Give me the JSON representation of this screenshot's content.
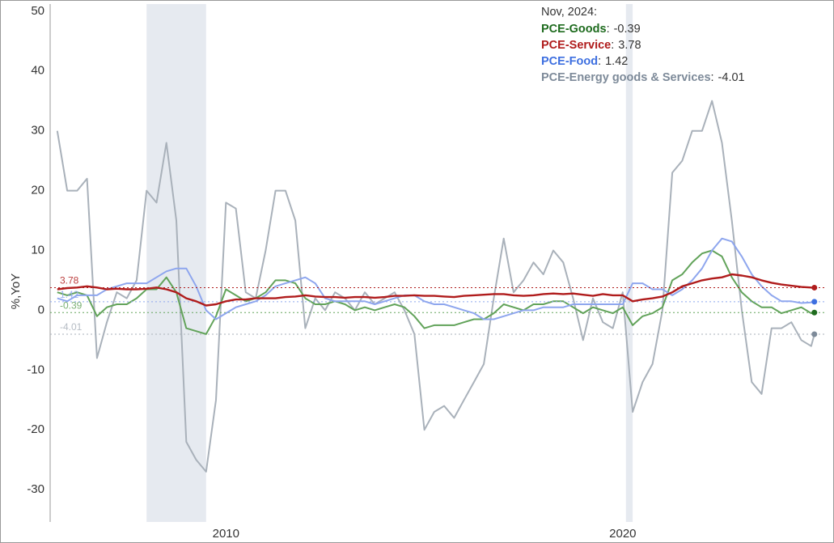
{
  "chart_data": {
    "type": "line",
    "ylabel": "%,YoY",
    "legend_title": "Nov, 2024:",
    "legend": "top-right",
    "xlim": [
      2005.57,
      2025.1
    ],
    "xticks": [
      2010,
      2020
    ],
    "ylim": [
      -35.4,
      51.2
    ],
    "yticks": [
      -30,
      -20,
      -10,
      0,
      10,
      20,
      30,
      40,
      50
    ],
    "shading": [
      [
        2008.0,
        2009.5
      ],
      [
        2020.08,
        2020.25
      ]
    ],
    "shading_color": "#e6eaf0",
    "x": [
      2005.75,
      2006.0,
      2006.25,
      2006.5,
      2006.75,
      2007.0,
      2007.25,
      2007.5,
      2007.75,
      2008.0,
      2008.25,
      2008.5,
      2008.75,
      2009.0,
      2009.25,
      2009.5,
      2009.75,
      2010.0,
      2010.25,
      2010.5,
      2010.75,
      2011.0,
      2011.25,
      2011.5,
      2011.75,
      2012.0,
      2012.25,
      2012.5,
      2012.75,
      2013.0,
      2013.25,
      2013.5,
      2013.75,
      2014.0,
      2014.25,
      2014.5,
      2014.75,
      2015.0,
      2015.25,
      2015.5,
      2015.75,
      2016.0,
      2016.25,
      2016.5,
      2016.75,
      2017.0,
      2017.25,
      2017.5,
      2017.75,
      2018.0,
      2018.25,
      2018.5,
      2018.75,
      2019.0,
      2019.25,
      2019.5,
      2019.75,
      2020.0,
      2020.25,
      2020.5,
      2020.75,
      2021.0,
      2021.25,
      2021.5,
      2021.75,
      2022.0,
      2022.25,
      2022.5,
      2022.75,
      2023.0,
      2023.25,
      2023.5,
      2023.75,
      2024.0,
      2024.25,
      2024.5,
      2024.75,
      2024.83
    ],
    "series": [
      {
        "name": "PCE-Energy goods & Services",
        "color": "#7d8a99",
        "line_color": "#a9b1ba",
        "values": [
          30,
          20,
          20,
          22,
          -8,
          -2,
          3,
          2,
          5,
          20,
          18,
          28,
          15,
          -22,
          -25,
          -27,
          -15,
          18,
          17,
          3,
          2,
          10,
          20,
          20,
          15,
          -3,
          2,
          0,
          3,
          2,
          0,
          3,
          1,
          2,
          3,
          0,
          -4,
          -20,
          -17,
          -16,
          -18,
          -15,
          -12,
          -9,
          2,
          12,
          3,
          5,
          8,
          6,
          10,
          8,
          2,
          -5,
          2,
          -2,
          -3,
          3,
          -17,
          -12,
          -9,
          0,
          23,
          25,
          30,
          30,
          35,
          28,
          15,
          0,
          -12,
          -14,
          -3,
          -3,
          -2,
          -5,
          -6,
          -4.01
        ]
      },
      {
        "name": "PCE-Goods",
        "color": "#1e6b1e",
        "line_color": "#62a35a",
        "values": [
          3,
          2.5,
          3,
          2.5,
          -1,
          0.5,
          1,
          1,
          2,
          3.5,
          3.5,
          5.5,
          3,
          -3,
          -3.5,
          -4,
          -1,
          3.5,
          2.5,
          1.5,
          2,
          3,
          5,
          5,
          4.5,
          2,
          1,
          1,
          1.5,
          1,
          0,
          0.5,
          0,
          0.5,
          1,
          0.5,
          -1,
          -3,
          -2.5,
          -2.5,
          -2.5,
          -2,
          -1.5,
          -1.5,
          -0.5,
          1,
          0.5,
          0,
          1,
          1,
          1.5,
          1.5,
          0.5,
          -0.5,
          0.5,
          0,
          -0.5,
          0.5,
          -2.5,
          -1,
          -0.5,
          0.5,
          5,
          6,
          8,
          9.5,
          10,
          9,
          5.5,
          3,
          1.5,
          0.5,
          0.5,
          -0.5,
          0,
          0.5,
          -0.5,
          -0.39
        ]
      },
      {
        "name": "PCE-Food",
        "color": "#3d6fe0",
        "line_color": "#8ea6ee",
        "values": [
          2,
          1.5,
          2.5,
          2.5,
          2.5,
          3.5,
          4,
          4.5,
          4.5,
          4.5,
          5.5,
          6.5,
          7,
          7,
          4,
          0,
          -1.5,
          -0.5,
          0.5,
          1,
          1.5,
          2.5,
          4,
          4.5,
          5,
          5.5,
          4.5,
          2,
          1.5,
          1.5,
          1.5,
          1.5,
          1,
          1.5,
          2,
          2.5,
          2.5,
          1.5,
          1,
          1,
          0.5,
          0,
          -0.5,
          -1.5,
          -1.5,
          -1,
          -0.5,
          0,
          0,
          0.5,
          0.5,
          0.5,
          1,
          1,
          1,
          1,
          1,
          1,
          4.5,
          4.5,
          3.5,
          3.5,
          2.5,
          3.5,
          5,
          7,
          10,
          12,
          11.5,
          9,
          6,
          4,
          2.5,
          1.5,
          1.5,
          1.2,
          1.3,
          1.42
        ]
      },
      {
        "name": "PCE-Service",
        "color": "#b01c1c",
        "line_color": "#b01c1c",
        "values": [
          3.5,
          3.7,
          3.8,
          4,
          3.8,
          3.5,
          3.6,
          3.5,
          3.5,
          3.6,
          3.8,
          3.5,
          3,
          2,
          1.5,
          0.8,
          1,
          1.5,
          1.8,
          1.8,
          2,
          2,
          2,
          2.2,
          2.3,
          2.5,
          2.3,
          2.2,
          2.2,
          2.1,
          2.2,
          2.2,
          2.1,
          2.2,
          2.4,
          2.4,
          2.5,
          2.4,
          2.4,
          2.3,
          2.2,
          2.4,
          2.5,
          2.6,
          2.7,
          2.7,
          2.5,
          2.4,
          2.5,
          2.7,
          2.8,
          2.7,
          2.8,
          2.6,
          2.4,
          2.7,
          2.5,
          2.5,
          1.5,
          1.8,
          2,
          2.3,
          3,
          4,
          4.5,
          5,
          5.3,
          5.5,
          6,
          5.8,
          5.5,
          5,
          4.6,
          4.3,
          4.1,
          3.9,
          3.8,
          3.78
        ]
      }
    ],
    "legend_order": [
      1,
      3,
      2,
      0
    ]
  }
}
